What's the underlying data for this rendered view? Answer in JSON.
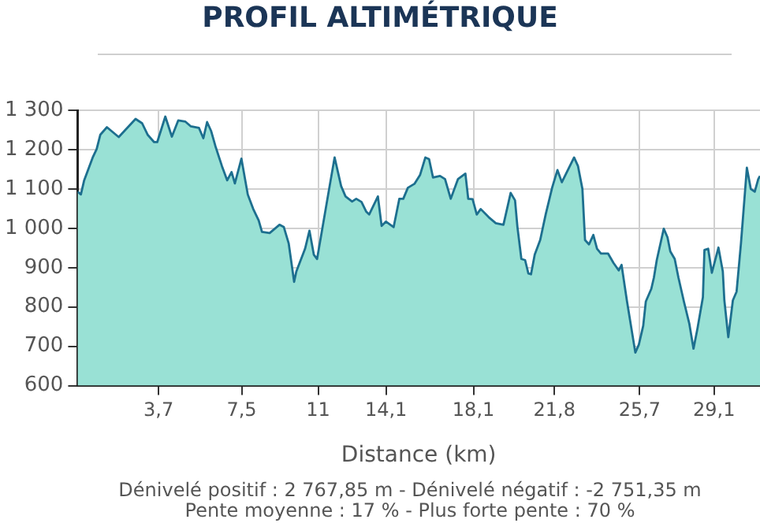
{
  "chart_data": {
    "type": "area",
    "title": "PROFIL ALTIMÉTRIQUE",
    "xlabel": "Distance (km)",
    "annotations": [
      "Dénivelé positif : 2 767,85 m - Dénivelé négatif : -2 751,35 m",
      "Pente moyenne : 17 % - Plus forte pente : 70 %"
    ],
    "x": [
      0,
      0.15,
      0.3,
      0.69,
      0.87,
      1.04,
      1.34,
      1.88,
      2.65,
      2.95,
      3.2,
      3.5,
      3.64,
      4.01,
      4.31,
      4.6,
      4.93,
      5.18,
      5.55,
      5.75,
      5.92,
      6.1,
      6.3,
      6.6,
      6.84,
      7.04,
      7.19,
      7.49,
      7.78,
      8.03,
      8.28,
      8.43,
      8.78,
      9.23,
      9.43,
      9.65,
      9.9,
      10.0,
      10.4,
      10.6,
      10.8,
      10.95,
      11.3,
      11.5,
      11.75,
      12.05,
      12.25,
      12.55,
      12.74,
      12.98,
      13.2,
      13.33,
      13.73,
      13.9,
      14.1,
      14.45,
      14.71,
      14.89,
      15.1,
      15.4,
      15.66,
      15.9,
      16.07,
      16.25,
      16.57,
      16.8,
      17.06,
      17.39,
      17.73,
      17.86,
      18.06,
      18.25,
      18.43,
      18.8,
      19.12,
      19.47,
      19.8,
      20.0,
      20.11,
      20.29,
      20.46,
      20.61,
      20.73,
      20.9,
      21.15,
      21.4,
      21.7,
      21.94,
      22.14,
      22.7,
      22.88,
      23.08,
      23.2,
      23.38,
      23.58,
      23.75,
      23.93,
      24.25,
      24.5,
      24.74,
      24.87,
      25.12,
      25.5,
      25.66,
      25.86,
      25.98,
      26.23,
      26.35,
      26.48,
      26.8,
      26.97,
      27.1,
      27.3,
      27.47,
      27.72,
      27.97,
      28.16,
      28.34,
      28.59,
      28.66,
      28.83,
      29.0,
      29.3,
      29.5,
      29.57,
      29.75,
      29.96,
      30.13,
      30.33,
      30.6,
      30.78,
      30.96,
      31.12,
      31.2
    ],
    "series": [
      {
        "color": "#1d6f8f",
        "values": [
          1093,
          1086,
          1122,
          1180,
          1201,
          1238,
          1257,
          1232,
          1278,
          1267,
          1238,
          1219,
          1219,
          1284,
          1233,
          1274,
          1271,
          1259,
          1255,
          1229,
          1270,
          1248,
          1209,
          1158,
          1122,
          1143,
          1114,
          1177,
          1086,
          1049,
          1020,
          991,
          988,
          1009,
          1003,
          962,
          864,
          890,
          948,
          994,
          933,
          922,
          1035,
          1100,
          1180,
          1107,
          1081,
          1068,
          1075,
          1067,
          1042,
          1035,
          1081,
          1006,
          1017,
          1003,
          1075,
          1075,
          1103,
          1113,
          1136,
          1180,
          1176,
          1129,
          1133,
          1125,
          1075,
          1125,
          1139,
          1075,
          1074,
          1035,
          1049,
          1028,
          1013,
          1009,
          1090,
          1071,
          1003,
          922,
          919,
          885,
          883,
          933,
          970,
          1035,
          1104,
          1148,
          1117,
          1180,
          1158,
          1100,
          970,
          959,
          983,
          948,
          936,
          936,
          912,
          893,
          907,
          814,
          684,
          704,
          752,
          814,
          846,
          875,
          919,
          999,
          977,
          941,
          922,
          875,
          814,
          757,
          694,
          745,
          825,
          945,
          948,
          887,
          951,
          890,
          817,
          723,
          817,
          839,
          962,
          1154,
          1100,
          1093,
          1125,
          1133
        ]
      }
    ],
    "xlim": [
      0,
      31.2
    ],
    "ylim": [
      600,
      1300
    ],
    "xticks": [
      {
        "value": 3.7,
        "label": "3,7"
      },
      {
        "value": 7.5,
        "label": "7,5"
      },
      {
        "value": 11,
        "label": "11"
      },
      {
        "value": 14.1,
        "label": "14,1"
      },
      {
        "value": 18.1,
        "label": "18,1"
      },
      {
        "value": 21.8,
        "label": "21,8"
      },
      {
        "value": 25.7,
        "label": "25,7"
      },
      {
        "value": 29.1,
        "label": "29,1"
      }
    ],
    "yticks": [
      600,
      700,
      800,
      900,
      {
        "value": 1000,
        "label": "1 000"
      },
      {
        "value": 1100,
        "label": "1 100"
      },
      {
        "value": 1200,
        "label": "1 200"
      },
      {
        "value": 1300,
        "label": "1 300"
      }
    ],
    "grid": true,
    "legend": false
  }
}
